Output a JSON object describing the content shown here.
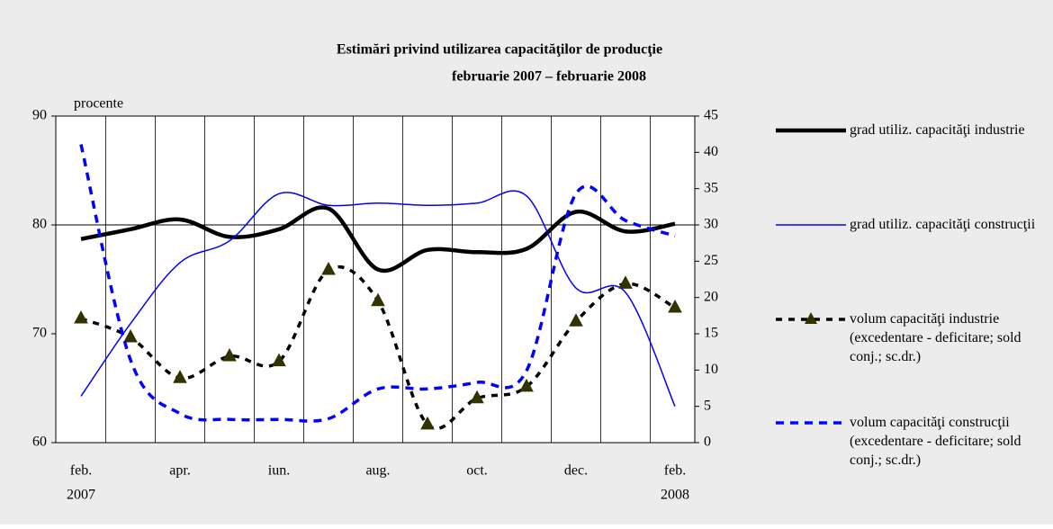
{
  "chart_data": {
    "type": "line",
    "title": [
      "Estimări privind utilizarea capacităţilor de producţie",
      "februarie 2007 – februarie 2008"
    ],
    "ylabel": "procente",
    "categories": [
      "feb.",
      null,
      "apr.",
      null,
      "iun.",
      null,
      "aug.",
      null,
      "oct.",
      null,
      "dec.",
      null,
      "feb."
    ],
    "year_labels": [
      "2007",
      "2008"
    ],
    "ylim": [
      60,
      90
    ],
    "yticks": [
      60,
      70,
      80,
      90
    ],
    "y2lim": [
      0,
      45
    ],
    "y2ticks": [
      0,
      5,
      10,
      15,
      20,
      25,
      30,
      35,
      40,
      45
    ],
    "reference_line": 80,
    "series": [
      {
        "name": "grad utiliz. capacităţi industrie",
        "color": "#000000",
        "style": "thick",
        "values": [
          78.7,
          79.6,
          80.5,
          78.9,
          79.6,
          81.5,
          75.9,
          77.7,
          77.5,
          77.8,
          81.2,
          79.4,
          80.1
        ]
      },
      {
        "name": "grad utiliz. capacităţi construcţii",
        "color": "#0000ff",
        "style": "thin",
        "axis": "y2",
        "values": [
          6.4,
          16.4,
          24.8,
          27.8,
          34.3,
          32.7,
          33,
          32.7,
          33,
          34,
          21.3,
          20.7,
          5
        ]
      },
      {
        "name": "volum capacităţi industrie (excedentare - deficitare; sold conj.; sc.dr.)",
        "color": "#000000",
        "style": "dashed-triangle",
        "axis": "y2",
        "values": [
          17.1,
          14.5,
          8.9,
          11.9,
          11.2,
          23.8,
          19.5,
          2.5,
          6.1,
          7.7,
          16.7,
          21.9,
          18.6
        ]
      },
      {
        "name": "volum capacităţi construcţii (excedentare - deficitare; sold conj.; sc.dr.)",
        "color": "#0000ff",
        "style": "dashed",
        "axis": "y2",
        "values": [
          41.1,
          11.4,
          4,
          3.2,
          3.2,
          3.3,
          7.4,
          7.4,
          8.3,
          9.9,
          34.3,
          30.6,
          28.5
        ]
      }
    ]
  }
}
